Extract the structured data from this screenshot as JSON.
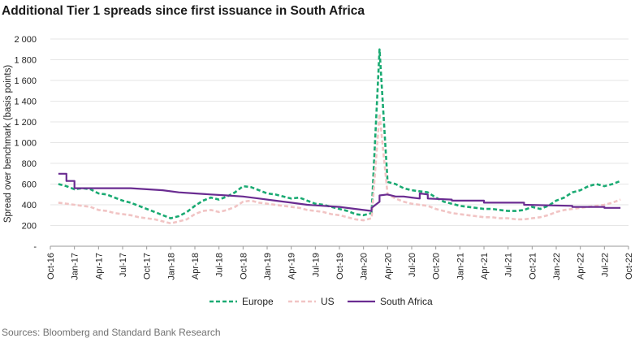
{
  "title": "Additional Tier 1 spreads since first issuance in South Africa",
  "source": "Sources: Bloomberg and Standard Bank Research",
  "colors": {
    "europe": "#1aaa72",
    "us": "#f1c4c4",
    "south_africa": "#6a2c91"
  },
  "chart_data": {
    "type": "line",
    "ylabel": "Spread over benchmark (basis points)",
    "ylim": [
      0,
      2000
    ],
    "y_ticks": [
      0,
      200,
      400,
      600,
      800,
      1000,
      1200,
      1400,
      1600,
      1800,
      2000
    ],
    "y_tick_labels": [
      "-",
      "200",
      "400",
      "600",
      "800",
      "1 000",
      "1 200",
      "1 400",
      "1 600",
      "1 800",
      "2 000"
    ],
    "x_ticks": [
      "Oct-16",
      "Jan-17",
      "Apr-17",
      "Jul-17",
      "Oct-17",
      "Jan-18",
      "Apr-18",
      "Jul-18",
      "Oct-18",
      "Jan-19",
      "Apr-19",
      "Jul-19",
      "Oct-19",
      "Jan-20",
      "Apr-20",
      "Jul-20",
      "Oct-20",
      "Jan-21",
      "Apr-21",
      "Jul-21",
      "Oct-21",
      "Jan-22",
      "Apr-22",
      "Jul-22",
      "Oct-22"
    ],
    "x_range": [
      "Oct-16",
      "Oct-22"
    ],
    "legend_position": "bottom",
    "series": [
      {
        "name": "Europe",
        "style": "dashed",
        "points": [
          [
            "Nov-16",
            600
          ],
          [
            "Dec-16",
            580
          ],
          [
            "Jan-17",
            550
          ],
          [
            "Feb-17",
            560
          ],
          [
            "Mar-17",
            550
          ],
          [
            "Apr-17",
            510
          ],
          [
            "May-17",
            500
          ],
          [
            "Jun-17",
            470
          ],
          [
            "Jul-17",
            440
          ],
          [
            "Aug-17",
            420
          ],
          [
            "Sep-17",
            390
          ],
          [
            "Oct-17",
            360
          ],
          [
            "Nov-17",
            330
          ],
          [
            "Dec-17",
            300
          ],
          [
            "Jan-18",
            270
          ],
          [
            "Feb-18",
            290
          ],
          [
            "Mar-18",
            330
          ],
          [
            "Apr-18",
            390
          ],
          [
            "May-18",
            440
          ],
          [
            "Jun-18",
            470
          ],
          [
            "Jul-18",
            450
          ],
          [
            "Aug-18",
            480
          ],
          [
            "Sep-18",
            520
          ],
          [
            "Oct-18",
            580
          ],
          [
            "Nov-18",
            570
          ],
          [
            "Dec-18",
            540
          ],
          [
            "Jan-19",
            510
          ],
          [
            "Feb-19",
            500
          ],
          [
            "Mar-19",
            480
          ],
          [
            "Apr-19",
            460
          ],
          [
            "May-19",
            470
          ],
          [
            "Jun-19",
            440
          ],
          [
            "Jul-19",
            410
          ],
          [
            "Aug-19",
            400
          ],
          [
            "Sep-19",
            380
          ],
          [
            "Oct-19",
            360
          ],
          [
            "Nov-19",
            340
          ],
          [
            "Dec-19",
            310
          ],
          [
            "Jan-20",
            300
          ],
          [
            "Feb-20",
            320
          ],
          [
            "Mar-20",
            1900
          ],
          [
            "Apr-20",
            620
          ],
          [
            "May-20",
            600
          ],
          [
            "Jun-20",
            560
          ],
          [
            "Jul-20",
            540
          ],
          [
            "Aug-20",
            530
          ],
          [
            "Sep-20",
            520
          ],
          [
            "Oct-20",
            470
          ],
          [
            "Nov-20",
            430
          ],
          [
            "Dec-20",
            410
          ],
          [
            "Jan-21",
            390
          ],
          [
            "Feb-21",
            380
          ],
          [
            "Mar-21",
            370
          ],
          [
            "Apr-21",
            360
          ],
          [
            "May-21",
            360
          ],
          [
            "Jun-21",
            350
          ],
          [
            "Jul-21",
            340
          ],
          [
            "Aug-21",
            340
          ],
          [
            "Sep-21",
            350
          ],
          [
            "Oct-21",
            380
          ],
          [
            "Nov-21",
            360
          ],
          [
            "Dec-21",
            390
          ],
          [
            "Jan-22",
            440
          ],
          [
            "Feb-22",
            470
          ],
          [
            "Mar-22",
            520
          ],
          [
            "Apr-22",
            540
          ],
          [
            "May-22",
            580
          ],
          [
            "Jun-22",
            600
          ],
          [
            "Jul-22",
            580
          ],
          [
            "Aug-22",
            600
          ],
          [
            "Sep-22",
            630
          ]
        ]
      },
      {
        "name": "US",
        "style": "dashed",
        "points": [
          [
            "Nov-16",
            420
          ],
          [
            "Dec-16",
            410
          ],
          [
            "Jan-17",
            400
          ],
          [
            "Feb-17",
            390
          ],
          [
            "Mar-17",
            380
          ],
          [
            "Apr-17",
            350
          ],
          [
            "May-17",
            340
          ],
          [
            "Jun-17",
            320
          ],
          [
            "Jul-17",
            310
          ],
          [
            "Aug-17",
            300
          ],
          [
            "Sep-17",
            280
          ],
          [
            "Oct-17",
            270
          ],
          [
            "Nov-17",
            260
          ],
          [
            "Dec-17",
            240
          ],
          [
            "Jan-18",
            220
          ],
          [
            "Feb-18",
            240
          ],
          [
            "Mar-18",
            260
          ],
          [
            "Apr-18",
            310
          ],
          [
            "May-18",
            340
          ],
          [
            "Jun-18",
            350
          ],
          [
            "Jul-18",
            330
          ],
          [
            "Aug-18",
            350
          ],
          [
            "Sep-18",
            380
          ],
          [
            "Oct-18",
            430
          ],
          [
            "Nov-18",
            440
          ],
          [
            "Dec-18",
            420
          ],
          [
            "Jan-19",
            410
          ],
          [
            "Feb-19",
            400
          ],
          [
            "Mar-19",
            390
          ],
          [
            "Apr-19",
            380
          ],
          [
            "May-19",
            370
          ],
          [
            "Jun-19",
            350
          ],
          [
            "Jul-19",
            340
          ],
          [
            "Aug-19",
            330
          ],
          [
            "Sep-19",
            310
          ],
          [
            "Oct-19",
            300
          ],
          [
            "Nov-19",
            280
          ],
          [
            "Dec-19",
            260
          ],
          [
            "Jan-20",
            250
          ],
          [
            "Feb-20",
            270
          ],
          [
            "Mar-20",
            1280
          ],
          [
            "Apr-20",
            500
          ],
          [
            "May-20",
            460
          ],
          [
            "Jun-20",
            430
          ],
          [
            "Jul-20",
            410
          ],
          [
            "Aug-20",
            400
          ],
          [
            "Sep-20",
            390
          ],
          [
            "Oct-20",
            360
          ],
          [
            "Nov-20",
            340
          ],
          [
            "Dec-20",
            320
          ],
          [
            "Jan-21",
            310
          ],
          [
            "Feb-21",
            300
          ],
          [
            "Mar-21",
            290
          ],
          [
            "Apr-21",
            280
          ],
          [
            "May-21",
            280
          ],
          [
            "Jun-21",
            270
          ],
          [
            "Jul-21",
            270
          ],
          [
            "Aug-21",
            260
          ],
          [
            "Sep-21",
            260
          ],
          [
            "Oct-21",
            270
          ],
          [
            "Nov-21",
            280
          ],
          [
            "Dec-21",
            300
          ],
          [
            "Jan-22",
            330
          ],
          [
            "Feb-22",
            350
          ],
          [
            "Mar-22",
            360
          ],
          [
            "Apr-22",
            370
          ],
          [
            "May-22",
            380
          ],
          [
            "Jun-22",
            390
          ],
          [
            "Jul-22",
            400
          ],
          [
            "Aug-22",
            420
          ],
          [
            "Sep-22",
            450
          ]
        ]
      },
      {
        "name": "South Africa",
        "style": "solid",
        "points": [
          [
            "Nov-16",
            700
          ],
          [
            "Dec-16",
            700
          ],
          [
            "Dec-16",
            630
          ],
          [
            "Jan-17",
            630
          ],
          [
            "Jan-17",
            560
          ],
          [
            "Apr-17",
            560
          ],
          [
            "Aug-17",
            560
          ],
          [
            "Oct-17",
            550
          ],
          [
            "Dec-17",
            540
          ],
          [
            "Feb-18",
            520
          ],
          [
            "Apr-18",
            510
          ],
          [
            "Jun-18",
            500
          ],
          [
            "Aug-18",
            490
          ],
          [
            "Oct-18",
            480
          ],
          [
            "Dec-18",
            460
          ],
          [
            "Feb-19",
            440
          ],
          [
            "Apr-19",
            420
          ],
          [
            "Jun-19",
            400
          ],
          [
            "Aug-19",
            390
          ],
          [
            "Oct-19",
            380
          ],
          [
            "Dec-19",
            360
          ],
          [
            "Feb-20",
            340
          ],
          [
            "Feb-20",
            370
          ],
          [
            "Mar-20",
            430
          ],
          [
            "Mar-20",
            490
          ],
          [
            "Apr-20",
            500
          ],
          [
            "May-20",
            480
          ],
          [
            "Jun-20",
            480
          ],
          [
            "Jul-20",
            470
          ],
          [
            "Aug-20",
            460
          ],
          [
            "Aug-20",
            510
          ],
          [
            "Sep-20",
            500
          ],
          [
            "Sep-20",
            460
          ],
          [
            "Dec-20",
            450
          ],
          [
            "Dec-20",
            440
          ],
          [
            "Apr-21",
            440
          ],
          [
            "Apr-21",
            420
          ],
          [
            "Sep-21",
            420
          ],
          [
            "Sep-21",
            400
          ],
          [
            "Mar-22",
            390
          ],
          [
            "Mar-22",
            380
          ],
          [
            "Jul-22",
            380
          ],
          [
            "Jul-22",
            370
          ],
          [
            "Sep-22",
            370
          ]
        ]
      }
    ]
  }
}
